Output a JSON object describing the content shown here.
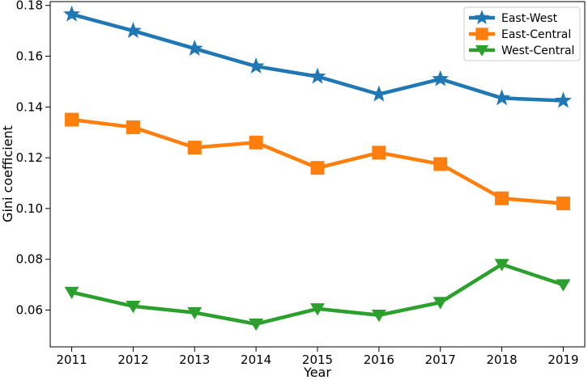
{
  "chart_data": {
    "type": "line",
    "x": [
      2011,
      2012,
      2013,
      2014,
      2015,
      2016,
      2017,
      2018,
      2019
    ],
    "xlabel": "Year",
    "ylabel": "Gini coefficient",
    "xlim": [
      2010.65,
      2019.35
    ],
    "ylim": [
      0.0455,
      0.1815
    ],
    "yticks": [
      0.06,
      0.08,
      0.1,
      0.12,
      0.14,
      0.16,
      0.18
    ],
    "ytick_labels": [
      "0.06",
      "0.08",
      "0.10",
      "0.12",
      "0.14",
      "0.16",
      "0.18"
    ],
    "xtick_labels": [
      "2011",
      "2012",
      "2013",
      "2014",
      "2015",
      "2016",
      "2017",
      "2018",
      "2019"
    ],
    "grid": false,
    "legend_position": "top-right",
    "series": [
      {
        "name": "East-West",
        "color": "#1f77b4",
        "marker": "star",
        "values": [
          0.1765,
          0.17,
          0.163,
          0.156,
          0.152,
          0.145,
          0.151,
          0.1435,
          0.1425
        ]
      },
      {
        "name": "East-Central",
        "color": "#ff7f0e",
        "marker": "square",
        "values": [
          0.135,
          0.132,
          0.124,
          0.126,
          0.116,
          0.122,
          0.1175,
          0.104,
          0.102
        ]
      },
      {
        "name": "West-Central",
        "color": "#2ca02c",
        "marker": "triangle-down",
        "values": [
          0.067,
          0.0615,
          0.059,
          0.0545,
          0.0605,
          0.058,
          0.063,
          0.078,
          0.07
        ]
      }
    ]
  }
}
